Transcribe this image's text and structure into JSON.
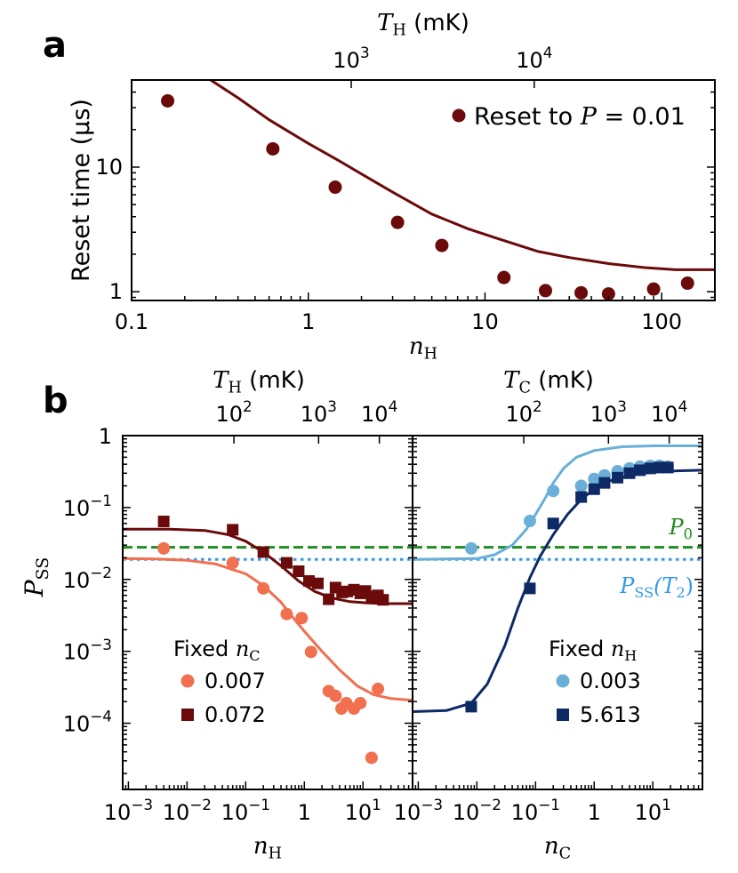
{
  "colors": {
    "dark_red": "#6b0a0a",
    "salmon": "#f07050",
    "light_blue": "#6aafd8",
    "navy": "#0e2a66",
    "green": "#228b22",
    "dot_blue": "#3399ee",
    "axis": "#000000"
  },
  "panel_labels": {
    "a": "a",
    "b": "b"
  },
  "chart_data": [
    {
      "id": "a",
      "type": "scatter",
      "xscale": "log",
      "yscale": "log",
      "xlim": [
        0.1,
        200
      ],
      "ylim": [
        0.85,
        50
      ],
      "xlabel": "n_H",
      "xlabel_main": "n",
      "xlabel_sub": "H",
      "ylabel": "Reset time (μs)",
      "top_label_main": "T",
      "top_label_sub": "H",
      "top_label_unit": "(mK)",
      "xticks": [
        {
          "v": 0.1,
          "label": "0.1"
        },
        {
          "v": 1,
          "label": "1"
        },
        {
          "v": 10,
          "label": "10"
        },
        {
          "v": 100,
          "label": "100"
        }
      ],
      "yticks": [
        {
          "v": 1,
          "label": "1"
        },
        {
          "v": 10,
          "label": "10"
        }
      ],
      "top_ticks": [
        {
          "v": 1.75,
          "label": "10",
          "exp": "3"
        },
        {
          "v": 19.0,
          "label": "10",
          "exp": "4"
        }
      ],
      "legend": {
        "prefix": "Reset to ",
        "var": "P",
        "suffix": " = 0.01",
        "position": "top-right"
      },
      "points": {
        "name": "Reset to P = 0.01",
        "x": [
          0.16,
          0.63,
          1.42,
          3.2,
          5.7,
          12.8,
          22,
          35,
          50,
          90,
          140
        ],
        "y": [
          34,
          14,
          6.9,
          3.6,
          2.35,
          1.3,
          1.02,
          0.98,
          0.96,
          1.05,
          1.17
        ]
      },
      "curve": {
        "x": [
          0.28,
          0.4,
          0.6,
          1,
          1.5,
          2,
          3,
          5,
          8,
          12,
          20,
          30,
          50,
          80,
          120,
          200
        ],
        "y": [
          50,
          36,
          24,
          15.5,
          11.2,
          8.8,
          6.3,
          4.2,
          3.2,
          2.65,
          2.1,
          1.88,
          1.68,
          1.56,
          1.5,
          1.5
        ]
      }
    },
    {
      "id": "b_left",
      "type": "scatter",
      "xscale": "log",
      "yscale": "log",
      "xlim": [
        0.0008,
        70
      ],
      "ylim": [
        1.2e-05,
        1.0
      ],
      "xlabel": "n_H",
      "xlabel_main": "n",
      "xlabel_sub": "H",
      "ylabel": "P_SS",
      "ylabel_main": "P",
      "ylabel_sub": "SS",
      "top_label_main": "T",
      "top_label_sub": "H",
      "top_label_unit": "(mK)",
      "xticks": [
        {
          "v": 0.001,
          "label": "10",
          "exp": "−3"
        },
        {
          "v": 0.01,
          "label": "10",
          "exp": "−2"
        },
        {
          "v": 0.1,
          "label": "10",
          "exp": "−1"
        },
        {
          "v": 1,
          "label": "1"
        },
        {
          "v": 10,
          "label": "10",
          "exp": "1"
        }
      ],
      "yticks": [
        {
          "v": 1,
          "label": "1"
        },
        {
          "v": 0.1,
          "label": "10",
          "exp": "−1"
        },
        {
          "v": 0.01,
          "label": "10",
          "exp": "−2"
        },
        {
          "v": 0.001,
          "label": "10",
          "exp": "−3"
        },
        {
          "v": 0.0001,
          "label": "10",
          "exp": "−4"
        }
      ],
      "top_ticks": [
        {
          "v": 0.063,
          "label": "10",
          "exp": "2"
        },
        {
          "v": 1.75,
          "label": "10",
          "exp": "3"
        },
        {
          "v": 19.0,
          "label": "10",
          "exp": "4"
        }
      ],
      "legend": {
        "title_prefix": "Fixed ",
        "title_main": "n",
        "title_sub": "C",
        "items": [
          "0.007",
          "0.072"
        ],
        "position": "bottom-left"
      },
      "hlines": [
        {
          "name": "P0",
          "y": 0.028,
          "style": "dashed",
          "color_key": "green"
        },
        {
          "name": "PSS(T2)",
          "y": 0.019,
          "style": "dotted",
          "color_key": "dot_blue"
        }
      ],
      "series": [
        {
          "name": "0.007",
          "marker": "circle",
          "color_key": "salmon",
          "x": [
            0.004,
            0.06,
            0.2,
            0.5,
            0.9,
            1.3,
            2.6,
            3.4,
            4.3,
            5.2,
            7,
            9,
            14,
            18
          ],
          "y": [
            0.027,
            0.017,
            0.0075,
            0.0033,
            0.0029,
            0.00098,
            0.00028,
            0.00024,
            0.00016,
            0.00019,
            0.00016,
            0.00019,
            3.3e-05,
            0.0003
          ],
          "curve": {
            "x": [
              0.0008,
              0.003,
              0.01,
              0.03,
              0.1,
              0.2,
              0.4,
              0.7,
              1,
              2,
              4,
              8,
              15,
              30,
              70
            ],
            "y": [
              0.0195,
              0.0192,
              0.0185,
              0.0165,
              0.012,
              0.0082,
              0.0048,
              0.0027,
              0.0019,
              0.001,
              0.00055,
              0.00033,
              0.00025,
              0.00022,
              0.000208
            ]
          }
        },
        {
          "name": "0.072",
          "marker": "square",
          "color_key": "dark_red",
          "x": [
            0.004,
            0.06,
            0.2,
            0.5,
            0.8,
            1.2,
            1.7,
            2.6,
            3.4,
            4.4,
            5.4,
            7,
            9,
            11,
            14,
            18,
            22
          ],
          "y": [
            0.064,
            0.049,
            0.024,
            0.017,
            0.013,
            0.0095,
            0.0088,
            0.0053,
            0.0077,
            0.0066,
            0.0068,
            0.0072,
            0.0064,
            0.0069,
            0.0058,
            0.006,
            0.0052
          ],
          "curve": {
            "x": [
              0.0008,
              0.005,
              0.02,
              0.05,
              0.1,
              0.2,
              0.4,
              0.8,
              1.5,
              3,
              6,
              12,
              25,
              70
            ],
            "y": [
              0.05,
              0.05,
              0.048,
              0.042,
              0.034,
              0.024,
              0.0155,
              0.0095,
              0.0068,
              0.0055,
              0.0049,
              0.0047,
              0.0046,
              0.0046
            ]
          }
        }
      ]
    },
    {
      "id": "b_right",
      "type": "scatter",
      "xscale": "log",
      "yscale": "log",
      "xlim": [
        0.0008,
        70
      ],
      "ylim": [
        1.2e-05,
        1.0
      ],
      "xlabel": "n_C",
      "xlabel_main": "n",
      "xlabel_sub": "C",
      "top_label_main": "T",
      "top_label_sub": "C",
      "top_label_unit": "(mK)",
      "xticks": [
        {
          "v": 0.001,
          "label": "10",
          "exp": "−3"
        },
        {
          "v": 0.01,
          "label": "10",
          "exp": "−2"
        },
        {
          "v": 0.1,
          "label": "10",
          "exp": "−1"
        },
        {
          "v": 1,
          "label": "1"
        },
        {
          "v": 10,
          "label": "10",
          "exp": "1"
        }
      ],
      "top_ticks": [
        {
          "v": 0.063,
          "label": "10",
          "exp": "2"
        },
        {
          "v": 1.75,
          "label": "10",
          "exp": "3"
        },
        {
          "v": 19.0,
          "label": "10",
          "exp": "4"
        }
      ],
      "annotations": [
        {
          "main": "P",
          "sub": "0",
          "color_key": "green"
        },
        {
          "main": "P",
          "sub": "SS",
          "paren": "(T",
          "paren_sub": "2",
          "paren_close": ")",
          "color_key": "dot_blue"
        }
      ],
      "legend": {
        "title_prefix": "Fixed ",
        "title_main": "n",
        "title_sub": "H",
        "items": [
          "0.003",
          "5.613"
        ],
        "position": "bottom-right"
      },
      "hlines": [
        {
          "name": "P0",
          "y": 0.028,
          "style": "dashed",
          "color_key": "green"
        },
        {
          "name": "PSS(T2)",
          "y": 0.019,
          "style": "dotted",
          "color_key": "dot_blue"
        }
      ],
      "series": [
        {
          "name": "0.003",
          "marker": "circle",
          "color_key": "light_blue",
          "x": [
            0.008,
            0.08,
            0.2,
            0.6,
            1,
            1.5,
            2.5,
            4,
            6,
            9,
            13,
            18
          ],
          "y": [
            0.027,
            0.065,
            0.17,
            0.2,
            0.25,
            0.28,
            0.32,
            0.35,
            0.37,
            0.38,
            0.38,
            0.37
          ],
          "curve": {
            "x": [
              0.0008,
              0.01,
              0.02,
              0.04,
              0.07,
              0.1,
              0.15,
              0.2,
              0.3,
              0.5,
              1,
              3,
              10,
              70
            ],
            "y": [
              0.019,
              0.0195,
              0.022,
              0.03,
              0.05,
              0.08,
              0.14,
              0.22,
              0.35,
              0.5,
              0.62,
              0.7,
              0.72,
              0.72
            ]
          }
        },
        {
          "name": "5.613",
          "marker": "square",
          "color_key": "navy",
          "x": [
            0.008,
            0.08,
            0.2,
            0.6,
            1,
            1.5,
            2.5,
            4,
            6,
            9,
            13,
            18
          ],
          "y": [
            0.00017,
            0.0075,
            0.06,
            0.14,
            0.18,
            0.22,
            0.26,
            0.3,
            0.33,
            0.35,
            0.36,
            0.36
          ],
          "curve": {
            "x": [
              0.0008,
              0.003,
              0.008,
              0.015,
              0.03,
              0.05,
              0.08,
              0.12,
              0.2,
              0.35,
              0.6,
              1,
              2,
              5,
              15,
              70
            ],
            "y": [
              0.000145,
              0.00015,
              0.00019,
              0.00035,
              0.0012,
              0.004,
              0.0105,
              0.021,
              0.042,
              0.08,
              0.13,
              0.18,
              0.24,
              0.29,
              0.32,
              0.33
            ]
          }
        }
      ]
    }
  ]
}
